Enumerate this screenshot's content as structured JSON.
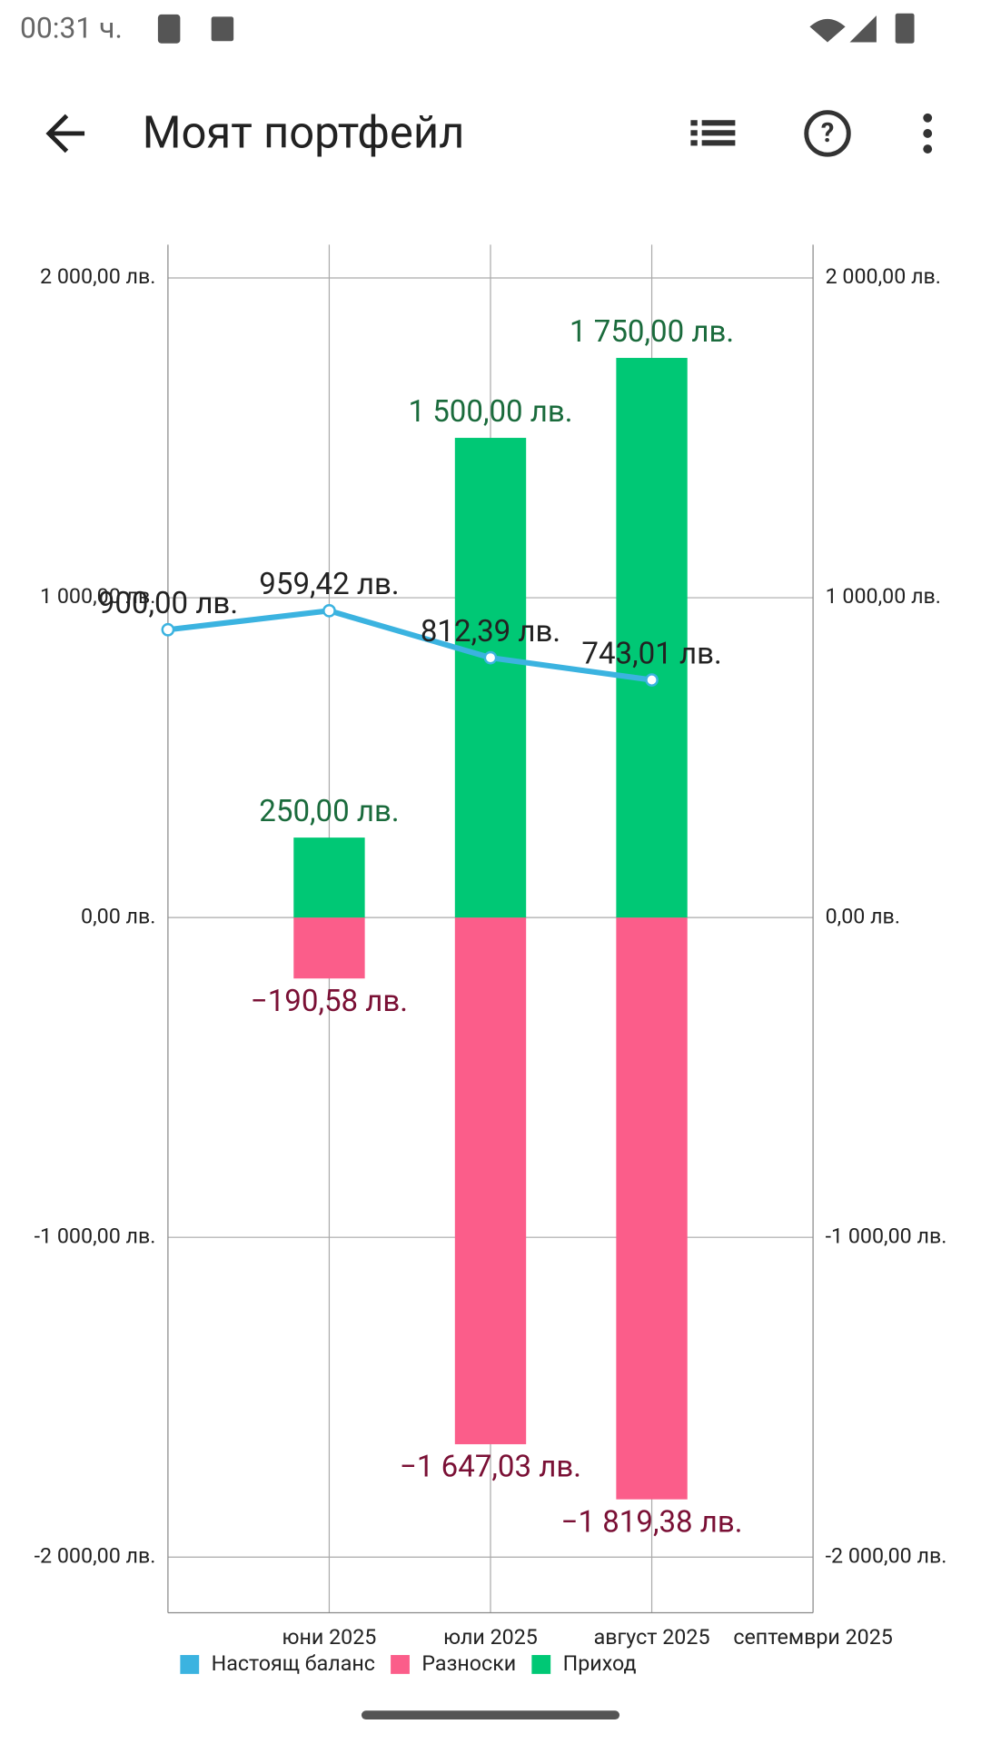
{
  "status_bar": {
    "time": "00:31 ч."
  },
  "app_bar": {
    "title": "Моят портфейл"
  },
  "chart_data": {
    "type": "combo",
    "categories": [
      null,
      "юни 2025",
      "юли 2025",
      "август 2025",
      "септември 2025"
    ],
    "ylim": [
      -2174,
      2104
    ],
    "y2lim": [
      -2174,
      2104
    ],
    "yticks": [
      {
        "value": -2000,
        "label": "-2 000,00 лв."
      },
      {
        "value": -1000,
        "label": "-1 000,00 лв."
      },
      {
        "value": 0,
        "label": "0,00 лв."
      },
      {
        "value": 1000,
        "label": "1 000,00 лв."
      },
      {
        "value": 2000,
        "label": "2 000,00 лв."
      }
    ],
    "y2ticks": [
      {
        "value": -2000,
        "label": "-2 000,00 лв."
      },
      {
        "value": -1000,
        "label": "-1 000,00 лв."
      },
      {
        "value": 0,
        "label": "0,00 лв."
      },
      {
        "value": 1000,
        "label": "1 000,00 лв."
      },
      {
        "value": 2000,
        "label": "2 000,00 лв."
      }
    ],
    "grid": true,
    "series": [
      {
        "name": "Настоящ баланс",
        "type": "line",
        "color": "#3bb3e0",
        "label_color": "#222222",
        "values": [
          900,
          959.42,
          812.39,
          743.01,
          null
        ],
        "value_labels": [
          "900,00 лв.",
          "959,42 лв.",
          "812,39 лв.",
          "743,01 лв.",
          null
        ]
      },
      {
        "name": "Разноски",
        "type": "bar",
        "color": "#fb5d8a",
        "label_color": "#7a1035",
        "values": [
          null,
          -190.58,
          -1647.03,
          -1819.38,
          null
        ],
        "value_labels": [
          null,
          "−190,58 лв.",
          "−1 647,03 лв.",
          "−1 819,38 лв.",
          null
        ]
      },
      {
        "name": "Приход",
        "type": "bar",
        "color": "#00c875",
        "label_color": "#1a6b3c",
        "values": [
          null,
          250,
          1500,
          1750,
          null
        ],
        "value_labels": [
          null,
          "250,00 лв.",
          "1 500,00 лв.",
          "1 750,00 лв.",
          null
        ]
      }
    ]
  }
}
